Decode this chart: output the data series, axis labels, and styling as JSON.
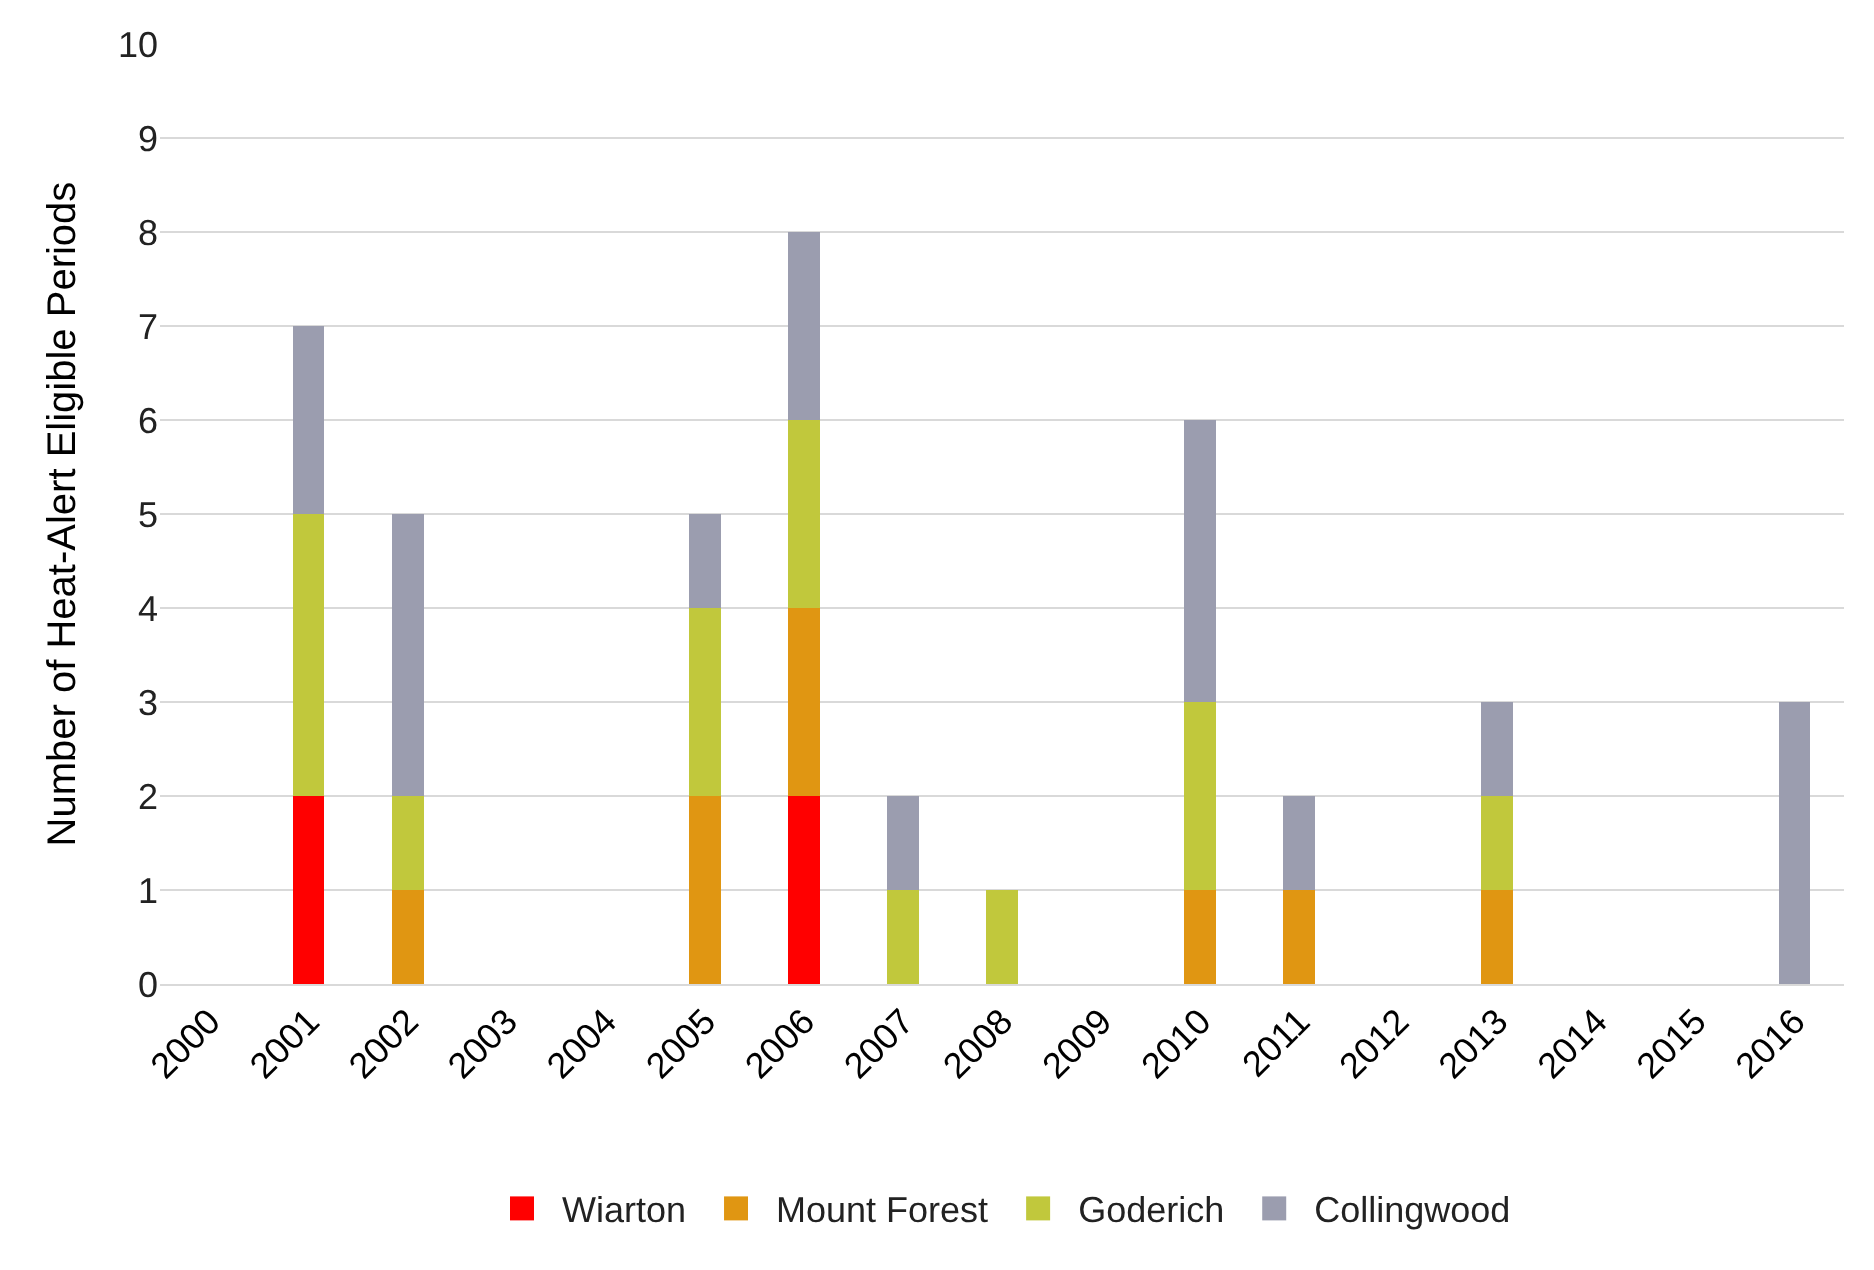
{
  "chart_data": {
    "type": "bar",
    "stacked": true,
    "ylabel": "Number of Heat-Alert Eligible Periods",
    "categories": [
      "2000",
      "2001",
      "2002",
      "2003",
      "2004",
      "2005",
      "2006",
      "2007",
      "2008",
      "2009",
      "2010",
      "2011",
      "2012",
      "2013",
      "2014",
      "2015",
      "2016"
    ],
    "series": [
      {
        "name": "Wiarton",
        "color": "#ff0000",
        "values": [
          0,
          2,
          0,
          0,
          0,
          0,
          2,
          0,
          0,
          0,
          0,
          0,
          0,
          0,
          0,
          0,
          0
        ]
      },
      {
        "name": "Mount Forest",
        "color": "#e09612",
        "values": [
          0,
          0,
          1,
          0,
          0,
          2,
          2,
          0,
          0,
          0,
          1,
          1,
          0,
          1,
          0,
          0,
          0
        ]
      },
      {
        "name": "Goderich",
        "color": "#c1c83c",
        "values": [
          0,
          3,
          1,
          0,
          0,
          2,
          2,
          1,
          1,
          0,
          2,
          0,
          0,
          1,
          0,
          0,
          0
        ]
      },
      {
        "name": "Collingwood",
        "color": "#9b9daf",
        "values": [
          0,
          2,
          3,
          0,
          0,
          1,
          2,
          1,
          0,
          0,
          3,
          1,
          0,
          1,
          0,
          0,
          3
        ]
      }
    ],
    "ylim": [
      0,
      10
    ],
    "yticks": [
      0,
      1,
      2,
      3,
      4,
      5,
      6,
      7,
      8,
      9,
      10
    ],
    "grid": "y",
    "legend": "bottom"
  }
}
